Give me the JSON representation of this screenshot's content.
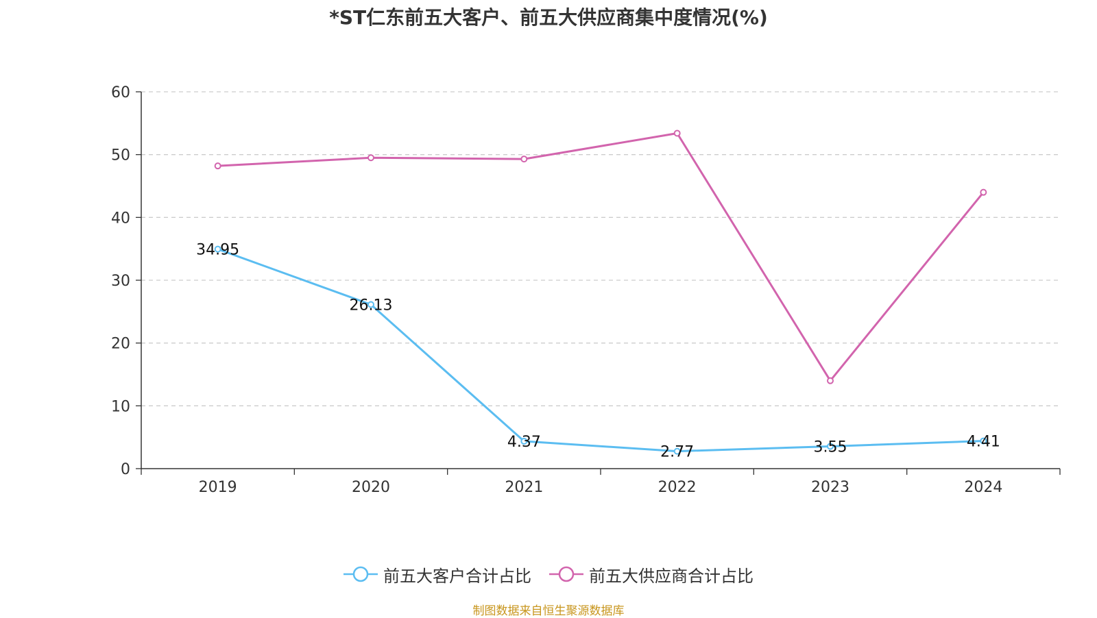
{
  "title": "*ST仁东前五大客户、前五大供应商集中度情况(%)",
  "source": "制图数据来自恒生聚源数据库",
  "chart_data": {
    "type": "line",
    "title": "*ST仁东前五大客户、前五大供应商集中度情况(%)",
    "categories": [
      "2019",
      "2020",
      "2021",
      "2022",
      "2023",
      "2024"
    ],
    "ylim": [
      0,
      60
    ],
    "yticks": [
      0,
      10,
      20,
      30,
      40,
      50,
      60
    ],
    "grid": true,
    "legend_position": "bottom",
    "series": [
      {
        "name": "前五大客户合计占比",
        "color": "#5bbdf1",
        "values": [
          34.95,
          26.13,
          4.37,
          2.77,
          3.55,
          4.41
        ],
        "data_labels": [
          "34.95",
          "26.13",
          "4.37",
          "2.77",
          "3.55",
          "4.41"
        ],
        "show_labels": true
      },
      {
        "name": "前五大供应商合计占比",
        "color": "#d264ad",
        "values": [
          48.2,
          49.5,
          49.3,
          53.4,
          14.0,
          44.0
        ],
        "show_labels": false
      }
    ]
  }
}
